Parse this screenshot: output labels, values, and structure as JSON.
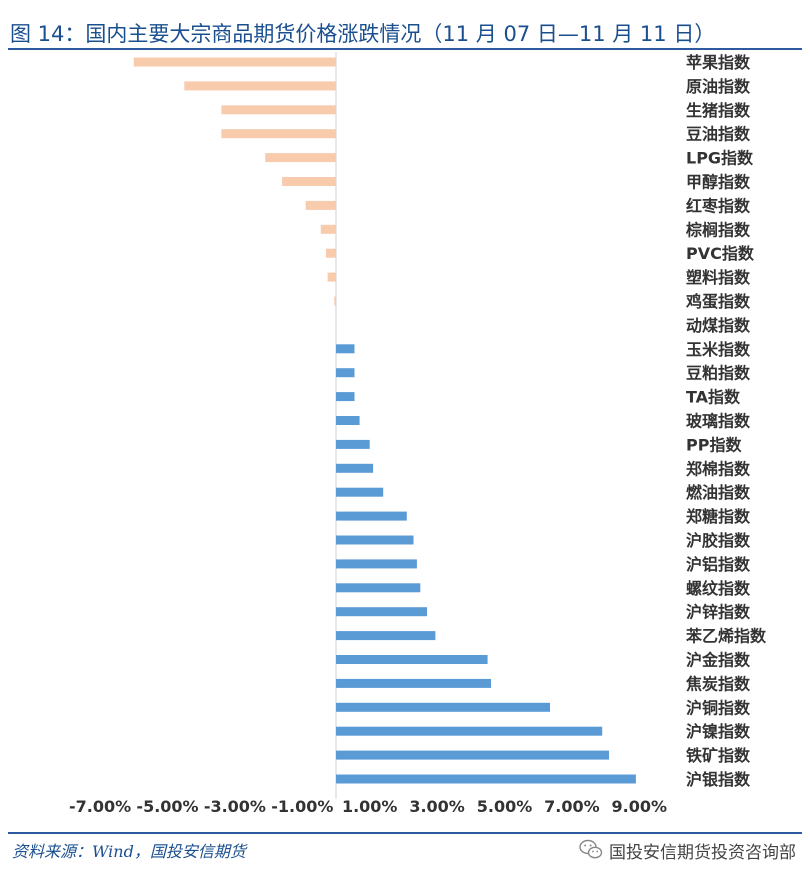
{
  "title": "图 14：国内主要大宗商品期货价格涨跌情况（11 月 07 日—11 月 11 日）",
  "source": "资料来源：Wind，国投安信期货",
  "brand": "国投安信期货投资咨询部",
  "colors": {
    "negative": "#f8cbad",
    "positive": "#5b9bd5",
    "axis": "#d0d0d0",
    "text": "#333333"
  },
  "chart_data": {
    "type": "bar",
    "orientation": "horizontal",
    "categories": [
      "苹果指数",
      "原油指数",
      "生猪指数",
      "豆油指数",
      "LPG指数",
      "甲醇指数",
      "红枣指数",
      "棕榈指数",
      "PVC指数",
      "塑料指数",
      "鸡蛋指数",
      "动煤指数",
      "玉米指数",
      "豆粕指数",
      "TA指数",
      "玻璃指数",
      "PP指数",
      "郑棉指数",
      "燃油指数",
      "郑糖指数",
      "沪胶指数",
      "沪铝指数",
      "螺纹指数",
      "沪锌指数",
      "苯乙烯指数",
      "沪金指数",
      "焦炭指数",
      "沪铜指数",
      "沪镍指数",
      "铁矿指数",
      "沪银指数"
    ],
    "values": [
      -6.0,
      -4.5,
      -3.4,
      -3.4,
      -2.1,
      -1.6,
      -0.9,
      -0.45,
      -0.3,
      -0.25,
      -0.05,
      0.0,
      0.55,
      0.55,
      0.55,
      0.7,
      1.0,
      1.1,
      1.4,
      2.1,
      2.3,
      2.4,
      2.5,
      2.7,
      2.95,
      4.5,
      4.6,
      6.35,
      7.9,
      8.1,
      8.9
    ],
    "xlim": [
      -9.0,
      10.0
    ],
    "ticks": [
      -7,
      -5,
      -3,
      -1,
      1,
      3,
      5,
      7,
      9
    ],
    "tick_labels": [
      "-7.00%",
      "-5.00%",
      "-3.00%",
      "-1.00%",
      "1.00%",
      "3.00%",
      "5.00%",
      "7.00%",
      "9.00%"
    ],
    "grid": false,
    "legend": "none"
  }
}
